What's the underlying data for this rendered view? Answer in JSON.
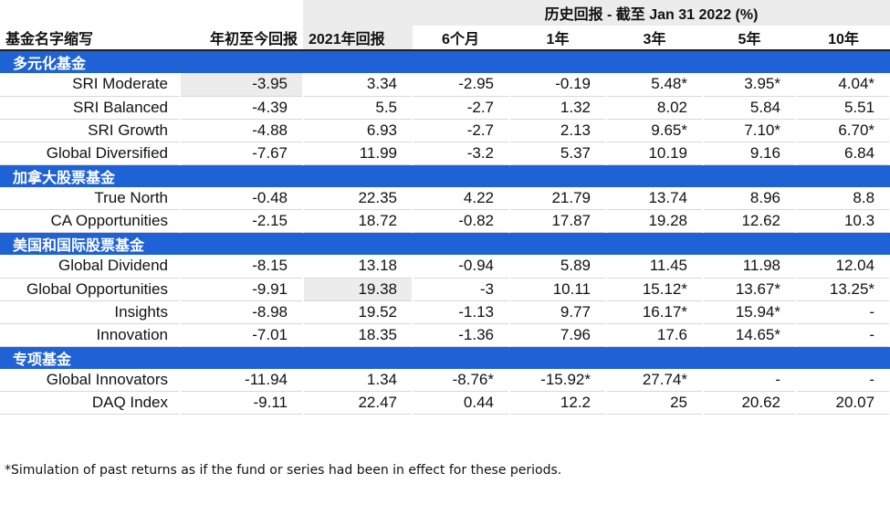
{
  "header": {
    "history_title": "历史回报 - 截至 Jan 31 2022 (%)",
    "fund_name": "基金名字缩写",
    "ytd": "年初至今回报",
    "y2021": "2021年回报",
    "m6": "6个月",
    "y1": "1年",
    "y3": "3年",
    "y5": "5年",
    "y10": "10年"
  },
  "sections": [
    {
      "title": "多元化基金",
      "rows": [
        {
          "name": "SRI Moderate",
          "ytd": "-3.95",
          "y2021": "3.34",
          "m6": "-2.95",
          "y1": "-0.19",
          "y3": "5.48*",
          "y5": "3.95*",
          "y10": "4.04*"
        },
        {
          "name": "SRI Balanced",
          "ytd": "-4.39",
          "y2021": "5.5",
          "m6": "-2.7",
          "y1": "1.32",
          "y3": "8.02",
          "y5": "5.84",
          "y10": "5.51"
        },
        {
          "name": "SRI Growth",
          "ytd": "-4.88",
          "y2021": "6.93",
          "m6": "-2.7",
          "y1": "2.13",
          "y3": "9.65*",
          "y5": "7.10*",
          "y10": "6.70*"
        },
        {
          "name": "Global Diversified",
          "ytd": "-7.67",
          "y2021": "11.99",
          "m6": "-3.2",
          "y1": "5.37",
          "y3": "10.19",
          "y5": "9.16",
          "y10": "6.84"
        }
      ]
    },
    {
      "title": "加拿大股票基金",
      "rows": [
        {
          "name": "True North",
          "ytd": "-0.48",
          "y2021": "22.35",
          "m6": "4.22",
          "y1": "21.79",
          "y3": "13.74",
          "y5": "8.96",
          "y10": "8.8"
        },
        {
          "name": "CA Opportunities",
          "ytd": "-2.15",
          "y2021": "18.72",
          "m6": "-0.82",
          "y1": "17.87",
          "y3": "19.28",
          "y5": "12.62",
          "y10": "10.3"
        }
      ]
    },
    {
      "title": "美国和国际股票基金",
      "rows": [
        {
          "name": "Global Dividend",
          "ytd": "-8.15",
          "y2021": "13.18",
          "m6": "-0.94",
          "y1": "5.89",
          "y3": "11.45",
          "y5": "11.98",
          "y10": "12.04"
        },
        {
          "name": "Global Opportunities",
          "ytd": "-9.91",
          "y2021": "19.38",
          "m6": "-3",
          "y1": "10.11",
          "y3": "15.12*",
          "y5": "13.67*",
          "y10": "13.25*"
        },
        {
          "name": "Insights",
          "ytd": "-8.98",
          "y2021": "19.52",
          "m6": "-1.13",
          "y1": "9.77",
          "y3": "16.17*",
          "y5": "15.94*",
          "y10": "-"
        },
        {
          "name": "Innovation",
          "ytd": "-7.01",
          "y2021": "18.35",
          "m6": "-1.36",
          "y1": "7.96",
          "y3": "17.6",
          "y5": "14.65*",
          "y10": "-"
        }
      ]
    },
    {
      "title": "专项基金",
      "rows": [
        {
          "name": "Global Innovators",
          "ytd": "-11.94",
          "y2021": "1.34",
          "m6": "-8.76*",
          "y1": "-15.92*",
          "y3": "27.74*",
          "y5": "-",
          "y10": "-"
        },
        {
          "name": "DAQ Index",
          "ytd": "-9.11",
          "y2021": "22.47",
          "m6": "0.44",
          "y1": "12.2",
          "y3": "25",
          "y5": "20.62",
          "y10": "20.07"
        }
      ]
    }
  ],
  "footnote": "*Simulation of past returns as if the fund or series had been in effect for these periods.",
  "colors": {
    "section_bar": "#1f62d6",
    "highlight_gray": "#ececec"
  }
}
